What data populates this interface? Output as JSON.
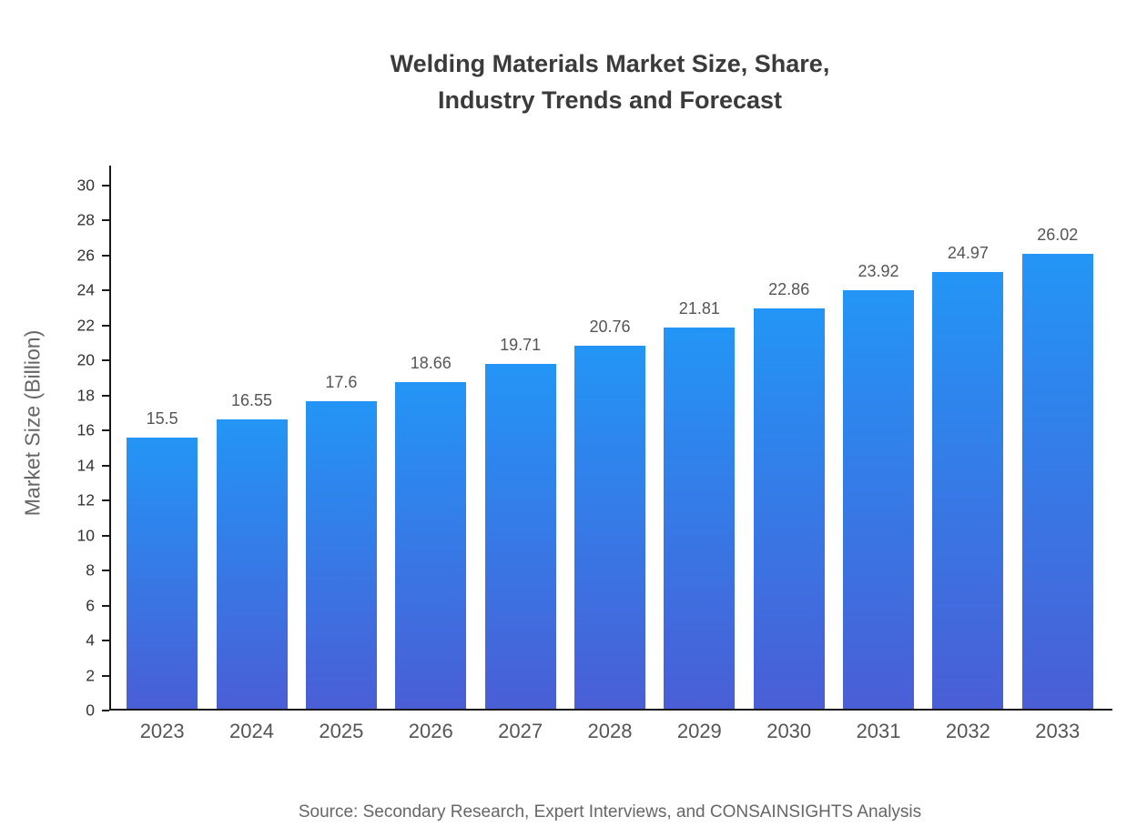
{
  "chart_data": {
    "type": "bar",
    "title": "Welding Materials Market Size, Share, Industry Trends and Forecast",
    "title_lines": [
      "Welding Materials Market Size, Share,",
      "Industry Trends and Forecast"
    ],
    "categories": [
      "2023",
      "2024",
      "2025",
      "2026",
      "2027",
      "2028",
      "2029",
      "2030",
      "2031",
      "2032",
      "2033"
    ],
    "values": [
      15.5,
      16.55,
      17.6,
      18.66,
      19.71,
      20.76,
      21.81,
      22.86,
      23.92,
      24.97,
      26.02
    ],
    "value_labels": [
      "15.5",
      "16.55",
      "17.6",
      "18.66",
      "19.71",
      "20.76",
      "21.81",
      "22.86",
      "23.92",
      "24.97",
      "26.02"
    ],
    "xlabel": "",
    "ylabel": "Market Size (Billion)",
    "ylim": [
      0,
      30
    ],
    "yticks": [
      0,
      2,
      4,
      6,
      8,
      10,
      12,
      14,
      16,
      18,
      20,
      22,
      24,
      26,
      28,
      30
    ],
    "grid": false,
    "legend": false,
    "bar_gradient_top": "#2395f6",
    "bar_gradient_bottom": "#4a5ed6",
    "axis_color": "#1a1a1a",
    "source": "Source: Secondary Research, Expert Interviews, and CONSAINSIGHTS Analysis"
  }
}
